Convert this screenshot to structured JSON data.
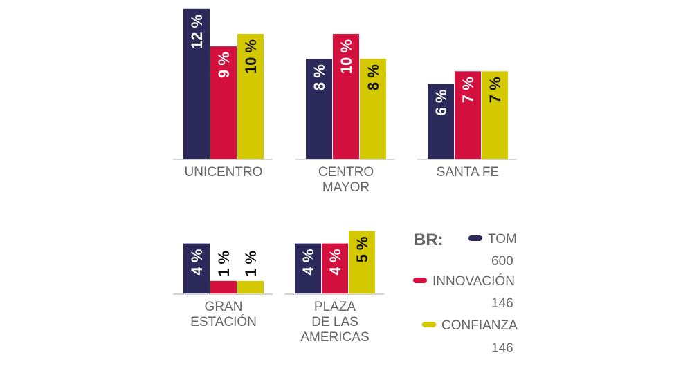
{
  "chart_data": {
    "type": "bar",
    "categories": [
      "UNICENTRO",
      "CENTRO\nMAYOR",
      "SANTA FE",
      "GRAN\nESTACIÓN",
      "PLAZA\nDE LAS\nAMERICAS"
    ],
    "series": [
      {
        "name": "TOM",
        "base": 600,
        "color": "#2b2a5a",
        "values": [
          12,
          8,
          6,
          4,
          4
        ],
        "value_labels": [
          "12 %",
          "8 %",
          "6 %",
          "4 %",
          "4 %"
        ]
      },
      {
        "name": "INNOVACIÓN",
        "base": 146,
        "color": "#d4103f",
        "values": [
          9,
          10,
          7,
          1,
          4
        ],
        "value_labels": [
          "9 %",
          "10 %",
          "7 %",
          "1 %",
          "4 %"
        ]
      },
      {
        "name": "CONFIANZA",
        "base": 146,
        "color": "#d4c800",
        "values": [
          10,
          8,
          7,
          1,
          5
        ],
        "value_labels": [
          "10 %",
          "8 %",
          "7 %",
          "1 %",
          "5 %"
        ]
      }
    ],
    "legend_title": "BR:"
  }
}
